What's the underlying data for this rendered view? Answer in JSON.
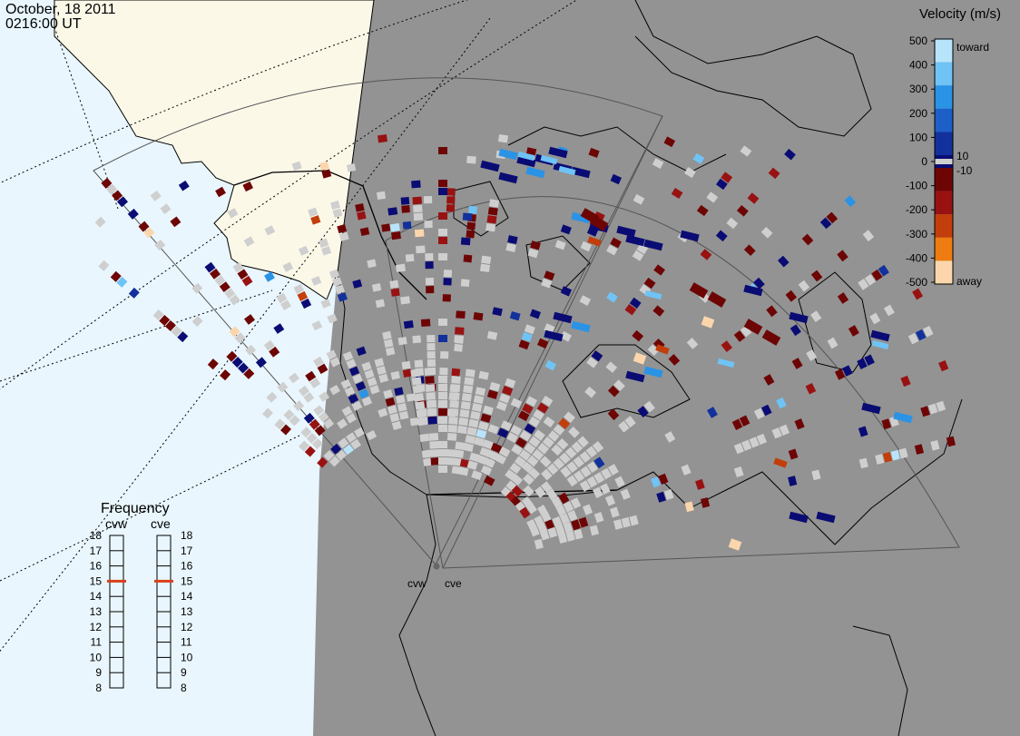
{
  "header": {
    "date": "October, 18 2011",
    "time": "0216:00 UT"
  },
  "velocity_scale": {
    "title": "Velocity (m/s)",
    "ticks": [
      "500",
      "400",
      "300",
      "200",
      "100",
      "0",
      "-100",
      "-200",
      "-300",
      "-400",
      "-500"
    ],
    "near_zero_labels": [
      "10",
      "-10"
    ],
    "toward_label": "toward",
    "away_label": "away",
    "colors": [
      "#b8e4fb",
      "#6fc3f5",
      "#2a93e6",
      "#1c5fc6",
      "#12319c",
      "#0a0c74",
      "#6e0505",
      "#981212",
      "#c23e0a",
      "#ee7c12",
      "#fbd6ac"
    ],
    "ground_scatter_color": "#cfcfcf"
  },
  "frequency_panel": {
    "title": "Frequency",
    "radars": [
      {
        "name": "cvw",
        "frequency_mhz": 15
      },
      {
        "name": "cve",
        "frequency_mhz": 15
      }
    ],
    "scale_values": [
      "18",
      "17",
      "16",
      "15",
      "14",
      "13",
      "12",
      "11",
      "10",
      "9",
      "8"
    ],
    "marker_color": "#d8401a"
  },
  "radar_sites": [
    {
      "name": "cvw"
    },
    {
      "name": "cve"
    }
  ],
  "map_colors": {
    "ocean": "#e9f6fd",
    "land_day": "#fbf8e8",
    "night": "#939393",
    "coastline": "#000000"
  }
}
